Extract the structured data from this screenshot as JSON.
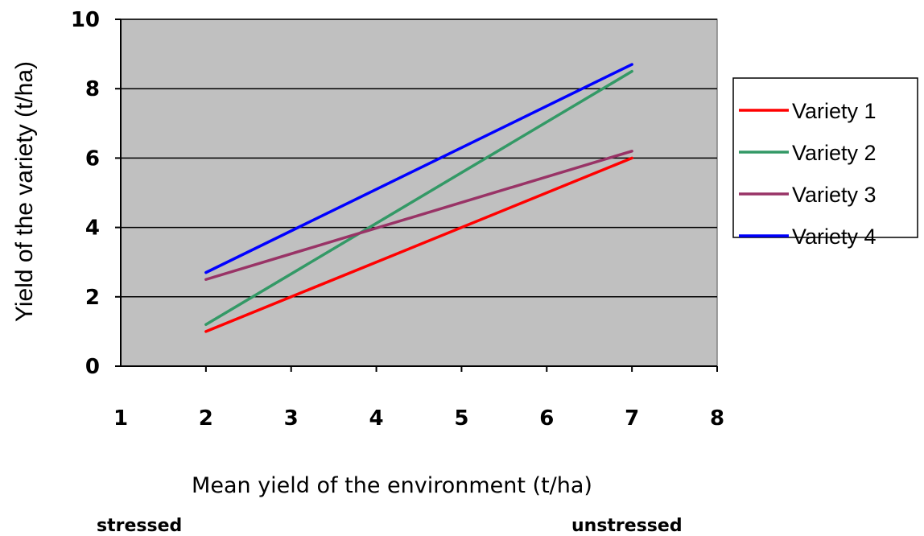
{
  "chart_data": {
    "type": "line",
    "ylabel": "Yield of the variety (t/ha)",
    "xlabel": "Mean yield of the environment (t/ha)",
    "xlim": [
      1,
      8
    ],
    "ylim": [
      0,
      10
    ],
    "x_ticks": [
      "1",
      "2",
      "3",
      "4",
      "5",
      "6",
      "7",
      "8"
    ],
    "y_ticks": [
      "0",
      "2",
      "4",
      "6",
      "8",
      "10"
    ],
    "x_tick_values": [
      1,
      2,
      3,
      4,
      5,
      6,
      7,
      8
    ],
    "y_tick_values": [
      0,
      2,
      4,
      6,
      8,
      10
    ],
    "grid": "horizontal",
    "plot_background": "#c0c0c0",
    "legend_position": "right",
    "series": [
      {
        "name": "Variety 1",
        "color": "#ff0000",
        "x": [
          2,
          7
        ],
        "y": [
          1.0,
          6.0
        ]
      },
      {
        "name": "Variety 2",
        "color": "#339966",
        "x": [
          2,
          7
        ],
        "y": [
          1.2,
          8.5
        ]
      },
      {
        "name": "Variety 3",
        "color": "#993366",
        "x": [
          2,
          7
        ],
        "y": [
          2.5,
          6.2
        ]
      },
      {
        "name": "Variety 4",
        "color": "#0000ff",
        "x": [
          2,
          7
        ],
        "y": [
          2.7,
          8.7
        ]
      }
    ],
    "annotations": {
      "left": "stressed",
      "right": "unstressed"
    }
  }
}
